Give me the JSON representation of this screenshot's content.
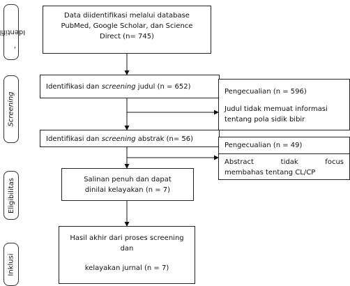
{
  "stages": {
    "identification": "Identifikas",
    "identification_suffix": ",",
    "screening": "Screening",
    "eligibility": "Eligibilitas",
    "included": "Inklusi"
  },
  "boxes": {
    "identified": "Data diidentifikasi melalui database PubMed, Google Scholar, dan Science Direct  (n= 745)",
    "title_screen_pre": "Identifikasi dan ",
    "title_screen_em": "screening",
    "title_screen_post": " judul (n = 652)",
    "excl1_title": "Pengecualian (n = 596)",
    "excl1_reason": "Judul tidak memuat informasi tentang pola sidik bibir",
    "abstract_screen_pre": "Identifikasi dan ",
    "abstract_screen_em": "screening",
    "abstract_screen_post": " abstrak (n= 56)",
    "excl2_title": "Pengecualian (n = 49)",
    "excl2_reason_line1": "Abstract tidak focus",
    "excl2_reason_line2": "membahas tentang CL/CP",
    "eligible": "Salinan penuh dan dapat dinilai kelayakan (n = 7)",
    "included_line1": "Hasil akhir dari proses screening dan",
    "included_line2": "kelayakan jurnal (n = 7)"
  }
}
